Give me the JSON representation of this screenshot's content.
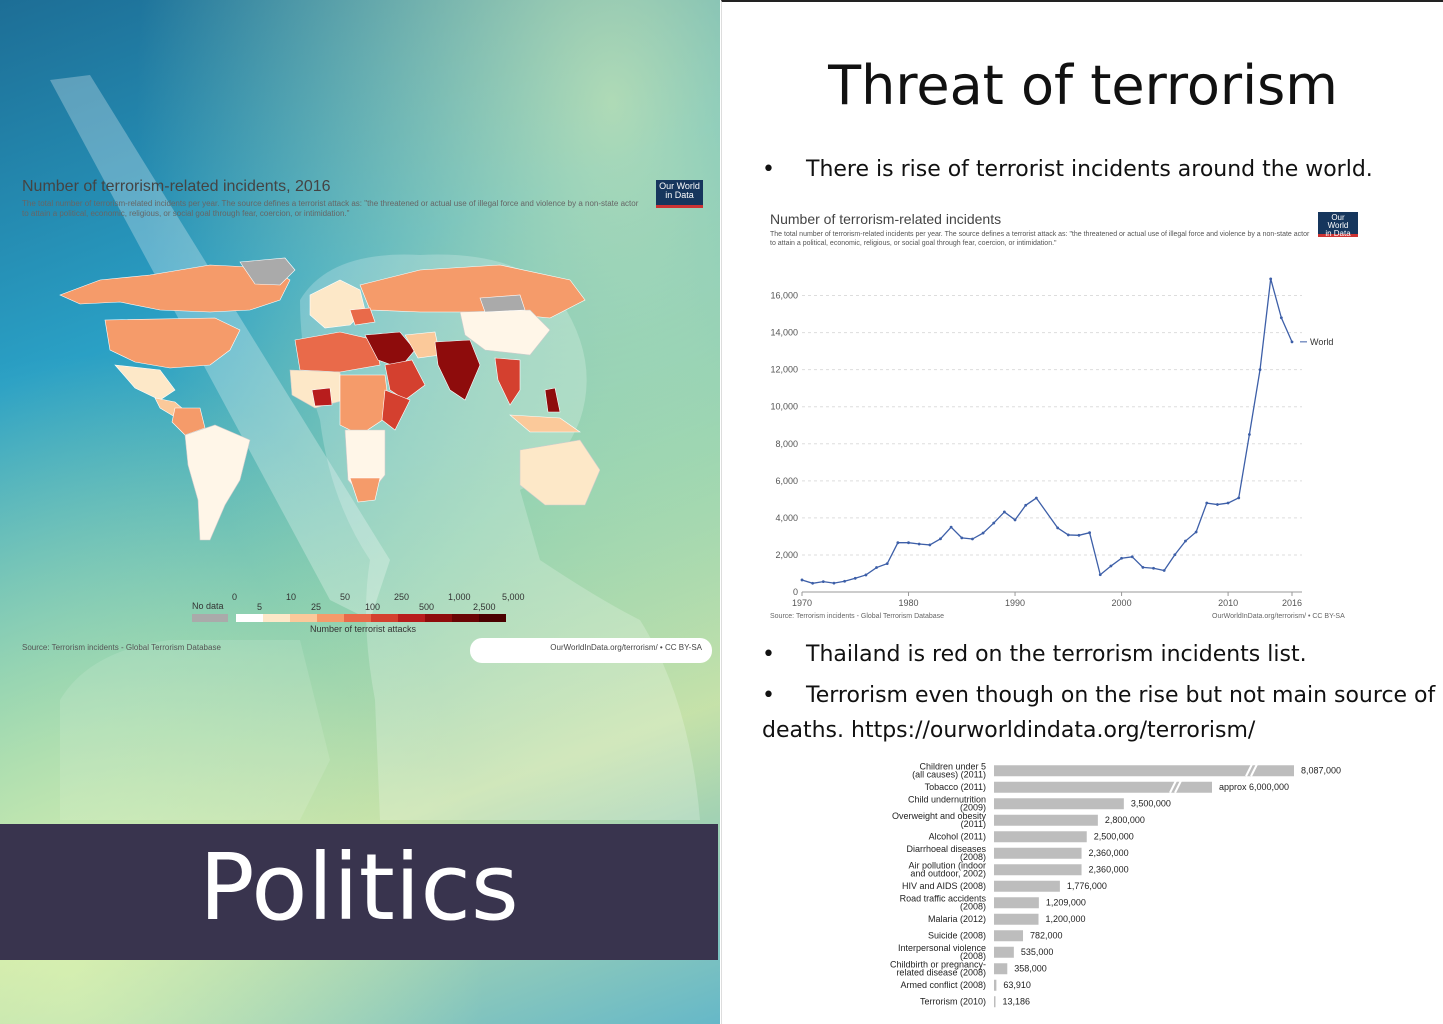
{
  "left_slide": {
    "map_title": "Number of terrorism-related incidents, 2016",
    "map_subtitle": "The total number of terrorism-related incidents per year. The source defines a terrorist attack as: \"the threatened or actual use of illegal force and violence by a non-state actor to attain a political, economic, religious, or social goal through fear, coercion, or intimidation.\"",
    "badge_line1": "Our World",
    "badge_line2": "in Data",
    "legend": {
      "no_data_label": "No data",
      "ticks_top": [
        "0",
        "10",
        "50",
        "250",
        "1,000",
        "5,000"
      ],
      "ticks_bottom": [
        "5",
        "25",
        "100",
        "500",
        "2,500"
      ],
      "caption": "Number of terrorist attacks",
      "colors": [
        "#ffffff",
        "#fde8c8",
        "#fbc99a",
        "#f59b6a",
        "#e96a4a",
        "#d4402f",
        "#b81d1d",
        "#8e0c0c",
        "#6a0505",
        "#4a0000"
      ]
    },
    "source": "Source: Terrorism incidents - Global Terrorism Database",
    "url": "OurWorldInData.org/terrorism/ • CC BY-SA",
    "banner": "Politics"
  },
  "right_slide": {
    "title": "Threat of terrorism",
    "bullet_char": "•",
    "bullet1": "There is rise of terrorist incidents around the world.",
    "bullet2": "Thailand is red on the terrorism incidents list.",
    "bullet3_line1": "Terrorism even though on the rise but not main source of",
    "bullet3_line2": "deaths. https://ourworldindata.org/terrorism/",
    "line_chart_title": "Number of terrorism-related incidents",
    "line_chart_subtitle": "The total number of terrorism-related incidents per year. The source defines a terrorist attack as: \"the threatened or actual use of illegal force and violence by a non-state actor to attain a political, economic, religious, or social goal through fear, coercion, or intimidation.\"",
    "line_chart_source": "Source: Terrorism incidents - Global Terrorism Database",
    "line_chart_url": "OurWorldInData.org/terrorism/ • CC BY-SA"
  },
  "chart_data": [
    {
      "type": "line",
      "title": "Number of terrorism-related incidents",
      "x": [
        1970,
        1971,
        1972,
        1973,
        1974,
        1975,
        1976,
        1977,
        1978,
        1979,
        1980,
        1981,
        1982,
        1983,
        1984,
        1985,
        1986,
        1987,
        1988,
        1989,
        1990,
        1991,
        1992,
        1993,
        1994,
        1995,
        1996,
        1997,
        1998,
        1999,
        2000,
        2001,
        2002,
        2003,
        2004,
        2005,
        2006,
        2007,
        2008,
        2009,
        2010,
        2011,
        2012,
        2013,
        2014,
        2015,
        2016
      ],
      "series": [
        {
          "name": "World",
          "values": [
            650,
            470,
            560,
            480,
            580,
            740,
            920,
            1320,
            1530,
            2660,
            2660,
            2590,
            2540,
            2870,
            3500,
            2920,
            2860,
            3180,
            3720,
            4320,
            3890,
            4680,
            5070,
            null,
            3460,
            3080,
            3060,
            3200,
            930,
            1400,
            1820,
            1900,
            1330,
            1280,
            1160,
            2010,
            2750,
            3240,
            4800,
            4720,
            4800,
            5080,
            8500,
            12000,
            16900,
            14800,
            13500
          ]
        }
      ],
      "xticks": [
        "1970",
        "1980",
        "1990",
        "2000",
        "2010",
        "2016"
      ],
      "yticks": [
        "0",
        "2,000",
        "4,000",
        "6,000",
        "8,000",
        "10,000",
        "12,000",
        "14,000",
        "16,000"
      ],
      "ylim": [
        0,
        17000
      ]
    },
    {
      "type": "bar",
      "categories": [
        [
          "Children under 5",
          "(all causes) (2011)"
        ],
        [
          "Tobacco (2011)"
        ],
        [
          "Child undernutrition",
          "(2009)"
        ],
        [
          "Overweight and obesity",
          "(2011)"
        ],
        [
          "Alcohol (2011)"
        ],
        [
          "Diarrhoeal diseases",
          "(2008)"
        ],
        [
          "Air pollution (indoor",
          "and outdoor, 2002)"
        ],
        [
          "HIV and AIDS (2008)"
        ],
        [
          "Road traffic accidents",
          "(2008)"
        ],
        [
          "Malaria (2012)"
        ],
        [
          "Suicide (2008)"
        ],
        [
          "Interpersonal violence",
          "(2008)"
        ],
        [
          "Childbirth or pregnancy-",
          "related disease (2008)"
        ],
        [
          "Armed conflict (2008)"
        ],
        [
          "Terrorism (2010)"
        ]
      ],
      "values": [
        8087000,
        6000000,
        3500000,
        2800000,
        2500000,
        2360000,
        2360000,
        1776000,
        1209000,
        1200000,
        782000,
        535000,
        358000,
        63910,
        13186
      ],
      "value_labels": [
        "8,087,000",
        "approx 6,000,000",
        "3,500,000",
        "2,800,000",
        "2,500,000",
        "2,360,000",
        "2,360,000",
        "1,776,000",
        "1,209,000",
        "1,200,000",
        "782,000",
        "535,000",
        "358,000",
        "63,910",
        "13,186"
      ],
      "broken_axis_rows": [
        0,
        1
      ]
    }
  ]
}
